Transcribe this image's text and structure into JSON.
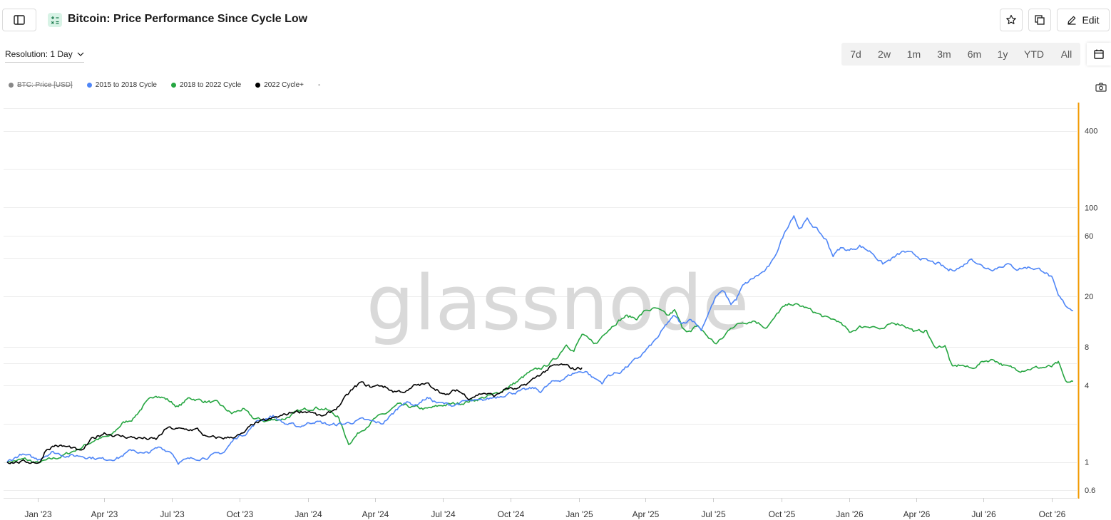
{
  "header": {
    "title": "Bitcoin: Price Performance Since Cycle Low",
    "edit_label": "Edit"
  },
  "icons": {
    "sidebar_toggle": "sidebar-icon",
    "title_icon": "calculator-icon",
    "favorite": "star-icon",
    "copy": "copy-icon",
    "edit": "pencil-icon",
    "calendar": "calendar-icon",
    "screenshot": "camera-icon",
    "resolution_dropdown": "chevron-down-icon"
  },
  "controls": {
    "resolution_label": "Resolution: 1 Day",
    "ranges": [
      "7d",
      "2w",
      "1m",
      "3m",
      "6m",
      "1y",
      "YTD",
      "All"
    ]
  },
  "legend": {
    "items": [
      {
        "label": "BTC: Price [USD]",
        "color": "#888888",
        "hidden": true
      },
      {
        "label": "2015 to 2018 Cycle",
        "color": "#4f86f7",
        "hidden": false
      },
      {
        "label": "2018 to 2022 Cycle",
        "color": "#26a641",
        "hidden": false
      },
      {
        "label": "2022 Cycle+",
        "color": "#000000",
        "hidden": false
      }
    ],
    "extra": "-"
  },
  "watermark": "glassnode",
  "colors": {
    "accent_axis": "#f29900",
    "grid": "#ececec",
    "watermark": "#d9d9d9"
  },
  "chart_data": {
    "type": "line",
    "y_scale": "log",
    "ylim": [
      0.55,
      650
    ],
    "xlim": [
      "2022-11-21",
      "2026-11-01"
    ],
    "x_ticks": [
      {
        "date": "2023-01-01",
        "label": "Jan '23"
      },
      {
        "date": "2023-04-01",
        "label": "Apr '23"
      },
      {
        "date": "2023-07-01",
        "label": "Jul '23"
      },
      {
        "date": "2023-10-01",
        "label": "Oct '23"
      },
      {
        "date": "2024-01-01",
        "label": "Jan '24"
      },
      {
        "date": "2024-04-01",
        "label": "Apr '24"
      },
      {
        "date": "2024-07-01",
        "label": "Jul '24"
      },
      {
        "date": "2024-10-01",
        "label": "Oct '24"
      },
      {
        "date": "2025-01-01",
        "label": "Jan '25"
      },
      {
        "date": "2025-04-01",
        "label": "Apr '25"
      },
      {
        "date": "2025-07-01",
        "label": "Jul '25"
      },
      {
        "date": "2025-10-01",
        "label": "Oct '25"
      },
      {
        "date": "2026-01-01",
        "label": "Jan '26"
      },
      {
        "date": "2026-04-01",
        "label": "Apr '26"
      },
      {
        "date": "2026-07-01",
        "label": "Jul '26"
      },
      {
        "date": "2026-10-01",
        "label": "Oct '26"
      }
    ],
    "y_ticks": [
      {
        "value": 400,
        "label": "400"
      },
      {
        "value": 100,
        "label": "100"
      },
      {
        "value": 60,
        "label": "60"
      },
      {
        "value": 20,
        "label": "20"
      },
      {
        "value": 8,
        "label": "8"
      },
      {
        "value": 4,
        "label": "4"
      },
      {
        "value": 1,
        "label": "1"
      },
      {
        "value": 0.6,
        "label": "0.6"
      }
    ],
    "series": [
      {
        "name": "2015 to 2018 Cycle",
        "color": "#4f86f7",
        "points": [
          [
            "2022-11-21",
            1.0
          ],
          [
            "2022-12-10",
            1.15
          ],
          [
            "2023-01-01",
            1.05
          ],
          [
            "2023-01-20",
            1.2
          ],
          [
            "2023-02-10",
            1.12
          ],
          [
            "2023-03-01",
            1.12
          ],
          [
            "2023-04-01",
            1.05
          ],
          [
            "2023-04-20",
            1.08
          ],
          [
            "2023-05-10",
            1.25
          ],
          [
            "2023-05-25",
            1.15
          ],
          [
            "2023-06-15",
            1.3
          ],
          [
            "2023-07-01",
            1.2
          ],
          [
            "2023-07-10",
            1.0
          ],
          [
            "2023-07-25",
            1.05
          ],
          [
            "2023-08-20",
            1.1
          ],
          [
            "2023-09-10",
            1.2
          ],
          [
            "2023-09-25",
            1.55
          ],
          [
            "2023-10-10",
            1.7
          ],
          [
            "2023-10-25",
            2.1
          ],
          [
            "2023-11-15",
            2.3
          ],
          [
            "2023-12-01",
            2.0
          ],
          [
            "2023-12-20",
            1.9
          ],
          [
            "2024-01-10",
            2.1
          ],
          [
            "2024-02-01",
            1.95
          ],
          [
            "2024-02-20",
            2.0
          ],
          [
            "2024-03-15",
            2.15
          ],
          [
            "2024-04-10",
            2.0
          ],
          [
            "2024-04-25",
            2.4
          ],
          [
            "2024-05-10",
            3.0
          ],
          [
            "2024-05-25",
            2.8
          ],
          [
            "2024-06-10",
            3.2
          ],
          [
            "2024-06-25",
            2.9
          ],
          [
            "2024-07-15",
            2.8
          ],
          [
            "2024-08-01",
            3.0
          ],
          [
            "2024-08-20",
            3.0
          ],
          [
            "2024-09-15",
            3.3
          ],
          [
            "2024-10-01",
            3.5
          ],
          [
            "2024-10-15",
            3.6
          ],
          [
            "2024-11-01",
            3.8
          ],
          [
            "2024-11-10",
            3.6
          ],
          [
            "2024-11-25",
            4.2
          ],
          [
            "2024-12-10",
            4.5
          ],
          [
            "2024-12-25",
            5.0
          ],
          [
            "2025-01-10",
            5.2
          ],
          [
            "2025-01-20",
            4.6
          ],
          [
            "2025-02-01",
            4.2
          ],
          [
            "2025-02-10",
            4.8
          ],
          [
            "2025-02-25",
            5.1
          ],
          [
            "2025-03-10",
            5.8
          ],
          [
            "2025-03-25",
            6.8
          ],
          [
            "2025-04-10",
            8.5
          ],
          [
            "2025-04-20",
            10.0
          ],
          [
            "2025-05-01",
            12.5
          ],
          [
            "2025-05-10",
            14.0
          ],
          [
            "2025-05-20",
            12.0
          ],
          [
            "2025-06-01",
            13.5
          ],
          [
            "2025-06-15",
            11.0
          ],
          [
            "2025-06-25",
            15.0
          ],
          [
            "2025-07-05",
            20.0
          ],
          [
            "2025-07-15",
            22.0
          ],
          [
            "2025-07-25",
            17.5
          ],
          [
            "2025-08-01",
            19.0
          ],
          [
            "2025-08-10",
            24.0
          ],
          [
            "2025-08-25",
            28.0
          ],
          [
            "2025-09-10",
            32.0
          ],
          [
            "2025-09-20",
            38.0
          ],
          [
            "2025-10-01",
            55.0
          ],
          [
            "2025-10-10",
            72.0
          ],
          [
            "2025-10-18",
            88.0
          ],
          [
            "2025-10-25",
            68.0
          ],
          [
            "2025-11-05",
            80.0
          ],
          [
            "2025-11-20",
            65.0
          ],
          [
            "2025-12-01",
            55.0
          ],
          [
            "2025-12-10",
            42.0
          ],
          [
            "2025-12-20",
            48.0
          ],
          [
            "2026-01-01",
            46.0
          ],
          [
            "2026-01-15",
            50.0
          ],
          [
            "2026-02-01",
            44.0
          ],
          [
            "2026-02-15",
            36.0
          ],
          [
            "2026-03-01",
            40.0
          ],
          [
            "2026-03-15",
            45.0
          ],
          [
            "2026-04-01",
            42.0
          ],
          [
            "2026-04-15",
            38.0
          ],
          [
            "2026-05-01",
            36.0
          ],
          [
            "2026-05-15",
            32.0
          ],
          [
            "2026-06-01",
            34.0
          ],
          [
            "2026-06-15",
            40.0
          ],
          [
            "2026-07-01",
            34.0
          ],
          [
            "2026-07-15",
            33.0
          ],
          [
            "2026-08-01",
            36.0
          ],
          [
            "2026-08-15",
            33.0
          ],
          [
            "2026-09-01",
            34.0
          ],
          [
            "2026-09-20",
            32.0
          ],
          [
            "2026-10-01",
            28.0
          ],
          [
            "2026-10-10",
            20.0
          ],
          [
            "2026-10-20",
            17.0
          ],
          [
            "2026-10-30",
            15.5
          ]
        ]
      },
      {
        "name": "2018 to 2022 Cycle",
        "color": "#26a641",
        "points": [
          [
            "2022-11-21",
            1.0
          ],
          [
            "2022-12-15",
            1.05
          ],
          [
            "2023-01-01",
            0.98
          ],
          [
            "2023-02-01",
            1.1
          ],
          [
            "2023-03-01",
            1.3
          ],
          [
            "2023-03-20",
            1.5
          ],
          [
            "2023-04-10",
            1.6
          ],
          [
            "2023-04-25",
            2.0
          ],
          [
            "2023-05-10",
            2.2
          ],
          [
            "2023-05-25",
            2.8
          ],
          [
            "2023-06-10",
            3.4
          ],
          [
            "2023-06-25",
            3.1
          ],
          [
            "2023-07-10",
            2.7
          ],
          [
            "2023-07-25",
            3.2
          ],
          [
            "2023-08-15",
            3.0
          ],
          [
            "2023-09-01",
            2.9
          ],
          [
            "2023-09-20",
            2.4
          ],
          [
            "2023-10-05",
            2.6
          ],
          [
            "2023-10-20",
            2.2
          ],
          [
            "2023-11-05",
            2.1
          ],
          [
            "2023-12-01",
            2.2
          ],
          [
            "2023-12-20",
            2.5
          ],
          [
            "2024-01-10",
            2.7
          ],
          [
            "2024-01-25",
            2.6
          ],
          [
            "2024-02-10",
            2.3
          ],
          [
            "2024-02-25",
            1.4
          ],
          [
            "2024-03-10",
            1.7
          ],
          [
            "2024-04-01",
            2.2
          ],
          [
            "2024-04-15",
            2.4
          ],
          [
            "2024-05-01",
            2.8
          ],
          [
            "2024-05-20",
            2.7
          ],
          [
            "2024-06-10",
            2.6
          ],
          [
            "2024-07-01",
            2.8
          ],
          [
            "2024-07-25",
            2.9
          ],
          [
            "2024-08-15",
            3.1
          ],
          [
            "2024-09-10",
            3.4
          ],
          [
            "2024-09-25",
            3.8
          ],
          [
            "2024-10-10",
            4.3
          ],
          [
            "2024-10-25",
            5.0
          ],
          [
            "2024-11-15",
            5.6
          ],
          [
            "2024-12-01",
            6.5
          ],
          [
            "2024-12-15",
            8.5
          ],
          [
            "2024-12-25",
            7.5
          ],
          [
            "2025-01-05",
            10.0
          ],
          [
            "2025-01-15",
            9.0
          ],
          [
            "2025-01-25",
            8.5
          ],
          [
            "2025-02-05",
            10.5
          ],
          [
            "2025-02-20",
            12.5
          ],
          [
            "2025-03-05",
            14.0
          ],
          [
            "2025-03-20",
            13.5
          ],
          [
            "2025-04-01",
            15.5
          ],
          [
            "2025-04-15",
            16.0
          ],
          [
            "2025-05-01",
            14.0
          ],
          [
            "2025-05-10",
            15.5
          ],
          [
            "2025-05-20",
            11.5
          ],
          [
            "2025-06-01",
            10.5
          ],
          [
            "2025-06-10",
            11.8
          ],
          [
            "2025-06-25",
            9.5
          ],
          [
            "2025-07-05",
            8.5
          ],
          [
            "2025-07-15",
            9.5
          ],
          [
            "2025-07-25",
            11.5
          ],
          [
            "2025-08-10",
            12.5
          ],
          [
            "2025-08-25",
            13.0
          ],
          [
            "2025-09-10",
            11.5
          ],
          [
            "2025-09-20",
            13.0
          ],
          [
            "2025-10-01",
            16.0
          ],
          [
            "2025-10-15",
            17.5
          ],
          [
            "2025-11-01",
            16.5
          ],
          [
            "2025-11-15",
            15.0
          ],
          [
            "2025-12-01",
            13.5
          ],
          [
            "2025-12-15",
            13.0
          ],
          [
            "2026-01-01",
            10.5
          ],
          [
            "2026-01-15",
            11.5
          ],
          [
            "2026-02-01",
            11.8
          ],
          [
            "2026-02-15",
            10.8
          ],
          [
            "2026-03-01",
            12.5
          ],
          [
            "2026-03-15",
            12.0
          ],
          [
            "2026-04-01",
            10.5
          ],
          [
            "2026-04-15",
            10.8
          ],
          [
            "2026-04-25",
            8.0
          ],
          [
            "2026-05-10",
            8.2
          ],
          [
            "2026-05-20",
            5.5
          ],
          [
            "2026-06-01",
            5.8
          ],
          [
            "2026-06-15",
            5.4
          ],
          [
            "2026-07-01",
            6.2
          ],
          [
            "2026-07-15",
            6.4
          ],
          [
            "2026-08-01",
            5.6
          ],
          [
            "2026-08-20",
            5.3
          ],
          [
            "2026-09-10",
            5.5
          ],
          [
            "2026-10-01",
            5.6
          ],
          [
            "2026-10-10",
            6.0
          ],
          [
            "2026-10-20",
            4.2
          ],
          [
            "2026-10-30",
            4.3
          ]
        ]
      },
      {
        "name": "2022 Cycle+",
        "color": "#000000",
        "points": [
          [
            "2022-11-21",
            1.0
          ],
          [
            "2022-12-15",
            1.0
          ],
          [
            "2023-01-05",
            1.0
          ],
          [
            "2023-01-12",
            1.25
          ],
          [
            "2023-01-25",
            1.35
          ],
          [
            "2023-02-15",
            1.3
          ],
          [
            "2023-03-01",
            1.2
          ],
          [
            "2023-03-15",
            1.5
          ],
          [
            "2023-04-01",
            1.7
          ],
          [
            "2023-04-20",
            1.6
          ],
          [
            "2023-05-15",
            1.55
          ],
          [
            "2023-06-10",
            1.5
          ],
          [
            "2023-06-25",
            1.85
          ],
          [
            "2023-07-15",
            1.8
          ],
          [
            "2023-08-05",
            1.8
          ],
          [
            "2023-08-18",
            1.55
          ],
          [
            "2023-09-15",
            1.55
          ],
          [
            "2023-10-05",
            1.65
          ],
          [
            "2023-10-20",
            2.0
          ],
          [
            "2023-11-10",
            2.15
          ],
          [
            "2023-12-01",
            2.35
          ],
          [
            "2023-12-15",
            2.5
          ],
          [
            "2024-01-05",
            2.5
          ],
          [
            "2024-01-15",
            2.3
          ],
          [
            "2024-01-25",
            2.3
          ],
          [
            "2024-02-10",
            2.7
          ],
          [
            "2024-02-28",
            3.6
          ],
          [
            "2024-03-12",
            4.2
          ],
          [
            "2024-03-25",
            3.9
          ],
          [
            "2024-04-10",
            4.0
          ],
          [
            "2024-04-25",
            3.6
          ],
          [
            "2024-05-15",
            3.6
          ],
          [
            "2024-05-25",
            4.0
          ],
          [
            "2024-06-10",
            4.1
          ],
          [
            "2024-06-25",
            3.7
          ],
          [
            "2024-07-05",
            3.3
          ],
          [
            "2024-07-20",
            3.7
          ],
          [
            "2024-08-05",
            3.2
          ],
          [
            "2024-08-25",
            3.5
          ],
          [
            "2024-09-10",
            3.3
          ],
          [
            "2024-09-25",
            3.8
          ],
          [
            "2024-10-10",
            3.7
          ],
          [
            "2024-10-25",
            4.2
          ],
          [
            "2024-11-10",
            4.9
          ],
          [
            "2024-11-25",
            5.6
          ],
          [
            "2024-12-10",
            5.8
          ],
          [
            "2024-12-25",
            5.4
          ],
          [
            "2025-01-05",
            5.5
          ]
        ]
      }
    ]
  }
}
